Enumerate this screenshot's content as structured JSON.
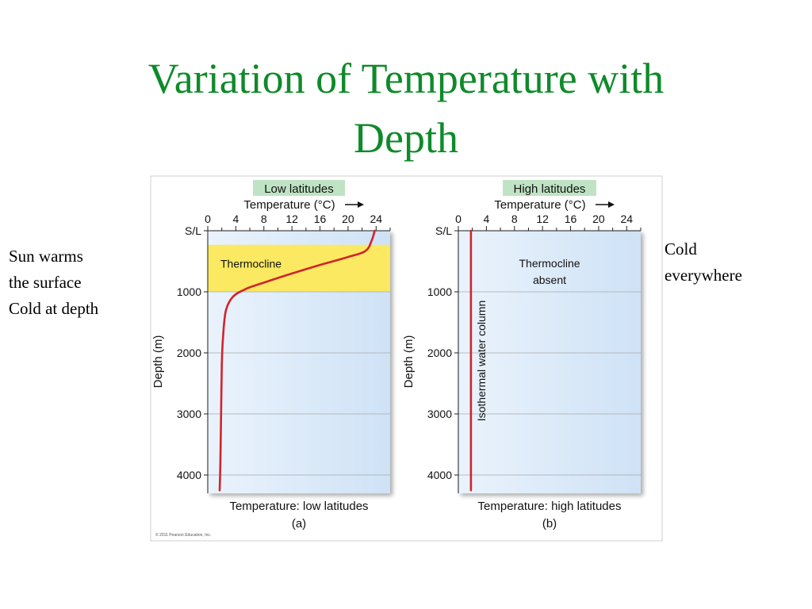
{
  "slide": {
    "title_line1": "Variation of Temperature with",
    "title_line2": "Depth",
    "note_left": [
      "Sun warms",
      "the surface",
      "Cold at depth"
    ],
    "note_right": [
      "Cold",
      "everywhere"
    ]
  },
  "colors": {
    "title": "#0f8a2a",
    "profile": "#d3232a",
    "thermocline_band": "#fbe962",
    "water": "#dcebf9",
    "header_badge": "#bfe3c4"
  },
  "copyright": "© 2011 Pearson Education, Inc.",
  "chart_data": [
    {
      "type": "line",
      "header": "Low latitudes",
      "xlabel": "Temperature (°C)",
      "ylabel": "Depth (m)",
      "x_ticks": [
        "0",
        "4",
        "8",
        "12",
        "16",
        "20",
        "24"
      ],
      "xlim": [
        0,
        26
      ],
      "y_ticks": [
        "S/L",
        "1000",
        "2000",
        "3000",
        "4000"
      ],
      "y_tick_values": [
        0,
        1000,
        2000,
        3000,
        4000
      ],
      "ylim": [
        0,
        4300
      ],
      "y_inverted": true,
      "band": {
        "label": "Thermocline",
        "from": 230,
        "to": 1000
      },
      "series": [
        {
          "x": [
            23.8,
            23.4,
            22.5,
            20,
            16,
            12,
            8,
            5.5,
            3.6,
            2.6,
            2.2,
            2.0,
            1.9,
            1.8,
            1.7
          ],
          "y": [
            0,
            150,
            330,
            430,
            560,
            700,
            850,
            950,
            1080,
            1300,
            1700,
            2200,
            3000,
            3800,
            4250
          ]
        }
      ],
      "caption_line1": "Temperature: low latitudes",
      "caption_line2": "(a)"
    },
    {
      "type": "line",
      "header": "High latitudes",
      "xlabel": "Temperature (°C)",
      "ylabel": "Depth (m)",
      "x_ticks": [
        "0",
        "4",
        "8",
        "12",
        "16",
        "20",
        "24"
      ],
      "xlim": [
        0,
        26
      ],
      "y_ticks": [
        "S/L",
        "1000",
        "2000",
        "3000",
        "4000"
      ],
      "y_tick_values": [
        0,
        1000,
        2000,
        3000,
        4000
      ],
      "ylim": [
        0,
        4300
      ],
      "y_inverted": true,
      "annotation_line1": "Thermocline",
      "annotation_line2": "absent",
      "vertical_label": "Isothermal water column",
      "series": [
        {
          "x": [
            1.8,
            1.8
          ],
          "y": [
            0,
            4250
          ]
        }
      ],
      "caption_line1": "Temperature: high latitudes",
      "caption_line2": "(b)"
    }
  ]
}
